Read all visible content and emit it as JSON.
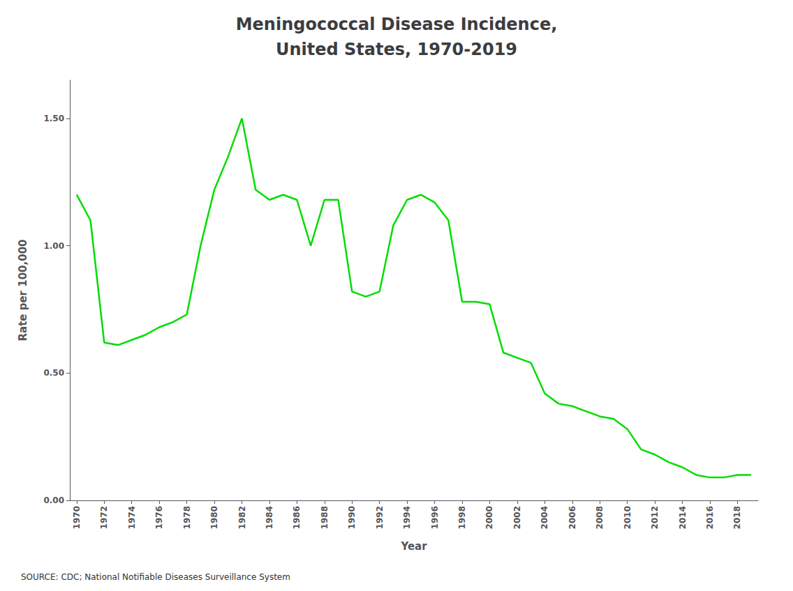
{
  "chart_data": {
    "type": "line",
    "title": "Meningococcal Disease Incidence,",
    "subtitle": "United States, 1970-2019",
    "xlabel": "Year",
    "ylabel": "Rate per 100,000",
    "annotations": [
      "SOURCE: CDC; National Notifiable Diseases Surveillance System"
    ],
    "color": "#00DD00",
    "grid": false,
    "x": [
      1970,
      1971,
      1972,
      1973,
      1974,
      1975,
      1976,
      1977,
      1978,
      1979,
      1980,
      1981,
      1982,
      1983,
      1984,
      1985,
      1986,
      1987,
      1988,
      1989,
      1990,
      1991,
      1992,
      1993,
      1994,
      1995,
      1996,
      1997,
      1998,
      1999,
      2000,
      2001,
      2002,
      2003,
      2004,
      2005,
      2006,
      2007,
      2008,
      2009,
      2010,
      2011,
      2012,
      2013,
      2014,
      2015,
      2016,
      2017,
      2018,
      2019
    ],
    "values": [
      1.2,
      1.1,
      0.62,
      0.61,
      0.63,
      0.65,
      0.68,
      0.7,
      0.73,
      1.0,
      1.22,
      1.35,
      1.5,
      1.22,
      1.18,
      1.2,
      1.18,
      1.0,
      1.18,
      1.18,
      0.82,
      0.8,
      0.82,
      1.08,
      1.18,
      1.2,
      1.17,
      1.1,
      0.78,
      0.78,
      0.77,
      0.58,
      0.56,
      0.54,
      0.42,
      0.38,
      0.37,
      0.35,
      0.33,
      0.32,
      0.28,
      0.2,
      0.18,
      0.15,
      0.13,
      0.1,
      0.09,
      0.09,
      0.1,
      0.1
    ],
    "xlim": [
      1969.5,
      2019.5
    ],
    "xticks": [
      1970,
      1972,
      1974,
      1976,
      1978,
      1980,
      1982,
      1984,
      1986,
      1988,
      1990,
      1992,
      1994,
      1996,
      1998,
      2000,
      2002,
      2004,
      2006,
      2008,
      2010,
      2012,
      2014,
      2016,
      2018
    ],
    "ylim": [
      0.0,
      1.65
    ],
    "yticks": [
      {
        "value": 0.0,
        "label": "0.00"
      },
      {
        "value": 0.5,
        "label": "0.50"
      },
      {
        "value": 1.0,
        "label": "1.00"
      },
      {
        "value": 1.5,
        "label": "1.50"
      }
    ]
  }
}
